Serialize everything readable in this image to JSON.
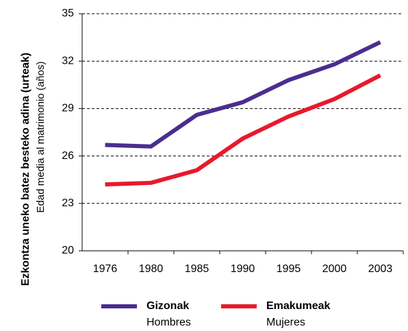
{
  "chart_data": {
    "type": "line",
    "ylabel": "Ezkontza uneko batez besteko adina (urteak)",
    "ylabel_secondary": "Edad media al matrimonio (años)",
    "categories": [
      "1976",
      "1980",
      "1985",
      "1990",
      "1995",
      "2000",
      "2003"
    ],
    "series": [
      {
        "name": "Gizonak",
        "name_secondary": "Hombres",
        "color": "#4b2d8f",
        "values": [
          26.7,
          26.6,
          28.6,
          29.4,
          30.8,
          31.8,
          33.2
        ]
      },
      {
        "name": "Emakumeak",
        "name_secondary": "Mujeres",
        "color": "#e8192c",
        "values": [
          24.2,
          24.3,
          25.1,
          27.1,
          28.5,
          29.6,
          31.1
        ]
      }
    ],
    "ylim": [
      20,
      35
    ],
    "yticks": [
      20,
      23,
      26,
      29,
      32,
      35
    ],
    "grid": true,
    "legend": "bottom"
  }
}
